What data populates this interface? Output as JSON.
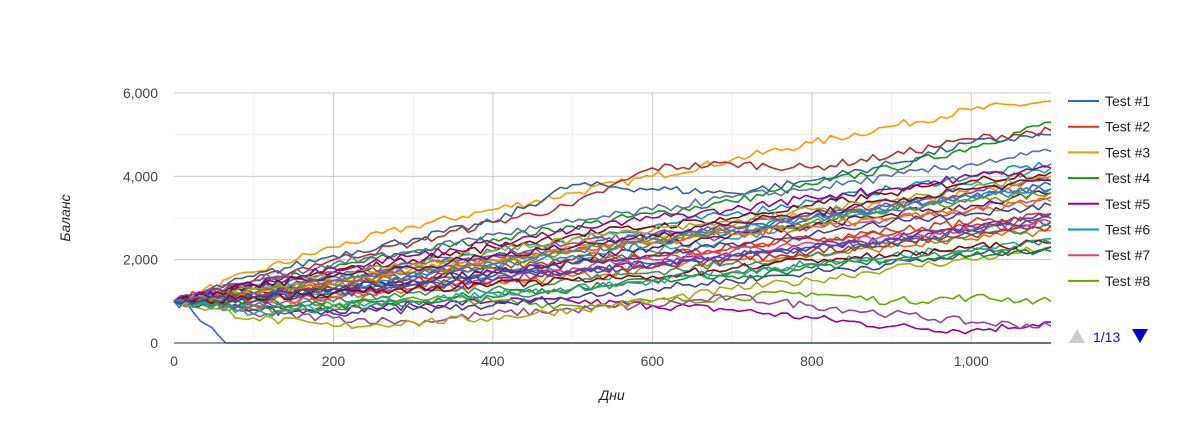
{
  "chart_data": {
    "type": "line",
    "title": "",
    "xlabel": "Дни",
    "ylabel": "Баланс",
    "xlim": [
      0,
      1100
    ],
    "ylim": [
      0,
      6000
    ],
    "x_ticks": [
      0,
      200,
      400,
      600,
      800,
      1000
    ],
    "x_tick_labels": [
      "0",
      "200",
      "400",
      "600",
      "800",
      "1,000"
    ],
    "y_ticks": [
      0,
      2000,
      4000,
      6000
    ],
    "y_tick_labels": [
      "0",
      "2,000",
      "4,000",
      "6,000"
    ],
    "grid": true,
    "legend_position": "right",
    "legend": {
      "page_label": "1/13",
      "entries": [
        {
          "name": "Test #1",
          "color": "#3366cc"
        },
        {
          "name": "Test #2",
          "color": "#dc3912"
        },
        {
          "name": "Test #3",
          "color": "#ff9900"
        },
        {
          "name": "Test #4",
          "color": "#109618"
        },
        {
          "name": "Test #5",
          "color": "#990099"
        },
        {
          "name": "Test #6",
          "color": "#0099c6"
        },
        {
          "name": "Test #7",
          "color": "#dd4477"
        },
        {
          "name": "Test #8",
          "color": "#66aa00"
        }
      ]
    },
    "palette": [
      "#3366cc",
      "#dc3912",
      "#ff9900",
      "#109618",
      "#990099",
      "#0099c6",
      "#dd4477",
      "#66aa00",
      "#b82e2e",
      "#316395",
      "#994499",
      "#22aa99",
      "#aaaa11",
      "#6633cc",
      "#e67300",
      "#8b0707",
      "#651067",
      "#329262",
      "#5574a6",
      "#3b3eac"
    ],
    "series": [
      {
        "name": "Test #1",
        "x": [
          0,
          20,
          40,
          55,
          65,
          1100
        ],
        "y": [
          1000,
          850,
          450,
          200,
          0,
          0
        ]
      },
      {
        "name": "Test #2",
        "x": [
          0,
          100,
          200,
          300,
          400,
          500,
          600,
          700,
          800,
          900,
          1000,
          1100
        ],
        "y": [
          1000,
          1100,
          1300,
          1500,
          1700,
          1900,
          2100,
          2300,
          2500,
          2700,
          2900,
          3100
        ]
      },
      {
        "name": "Test #3",
        "x": [
          0,
          100,
          200,
          300,
          400,
          500,
          600,
          700,
          800,
          900,
          1000,
          1100
        ],
        "y": [
          1000,
          1700,
          2300,
          2800,
          3200,
          3600,
          4000,
          4400,
          4800,
          5200,
          5600,
          5800
        ]
      },
      {
        "name": "Test #4",
        "x": [
          0,
          100,
          200,
          300,
          400,
          500,
          600,
          700,
          800,
          900,
          1000,
          1100
        ],
        "y": [
          1000,
          1400,
          1800,
          2200,
          2500,
          2800,
          3100,
          3400,
          3800,
          4200,
          4700,
          5300
        ]
      },
      {
        "name": "Test #5",
        "x": [
          0,
          100,
          200,
          300,
          400,
          500,
          600,
          700,
          800,
          900,
          1000,
          1100
        ],
        "y": [
          1000,
          900,
          800,
          900,
          1000,
          1000,
          900,
          800,
          600,
          400,
          300,
          500
        ]
      },
      {
        "name": "Test #6",
        "x": [
          0,
          100,
          200,
          300,
          400,
          500,
          600,
          700,
          800,
          900,
          1000,
          1100
        ],
        "y": [
          1000,
          1300,
          1600,
          1900,
          2200,
          2500,
          2800,
          3100,
          3400,
          3700,
          4000,
          4300
        ]
      },
      {
        "name": "Test #7",
        "x": [
          0,
          100,
          200,
          300,
          400,
          500,
          600,
          700,
          800,
          900,
          1000,
          1100
        ],
        "y": [
          1000,
          1200,
          1500,
          1700,
          2000,
          2200,
          2400,
          2600,
          2800,
          3000,
          3200,
          3500
        ]
      },
      {
        "name": "Test #8",
        "x": [
          0,
          100,
          200,
          300,
          400,
          500,
          600,
          700,
          800,
          900,
          1000,
          1100
        ],
        "y": [
          1000,
          800,
          900,
          1100,
          1000,
          900,
          1000,
          1100,
          1200,
          1000,
          1100,
          1000
        ]
      },
      {
        "x": [
          0,
          100,
          200,
          300,
          400,
          500,
          600,
          700,
          800,
          900,
          1000,
          1100
        ],
        "y": [
          1000,
          1500,
          2000,
          2400,
          2900,
          3300,
          4200,
          4300,
          4200,
          4500,
          4900,
          5100
        ]
      },
      {
        "x": [
          0,
          100,
          200,
          300,
          400,
          500,
          600,
          700,
          800,
          900,
          1000,
          1100
        ],
        "y": [
          1000,
          1600,
          2100,
          2500,
          2900,
          3800,
          3700,
          3600,
          3900,
          4300,
          4800,
          5000
        ]
      },
      {
        "x": [
          0,
          100,
          200,
          300,
          400,
          500,
          600,
          700,
          800,
          900,
          1000,
          1100
        ],
        "y": [
          1000,
          700,
          600,
          500,
          700,
          800,
          900,
          1100,
          900,
          700,
          500,
          400
        ]
      },
      {
        "x": [
          0,
          100,
          200,
          300,
          400,
          500,
          600,
          700,
          800,
          900,
          1000,
          1100
        ],
        "y": [
          1000,
          1100,
          1200,
          1400,
          1600,
          1900,
          2200,
          2500,
          2900,
          3300,
          3800,
          4200
        ]
      },
      {
        "x": [
          0,
          100,
          200,
          300,
          400,
          500,
          600,
          700,
          800,
          900,
          1000,
          1100
        ],
        "y": [
          1000,
          600,
          400,
          500,
          600,
          800,
          1000,
          1300,
          1500,
          1800,
          2000,
          2300
        ]
      },
      {
        "x": [
          0,
          100,
          200,
          300,
          400,
          500,
          600,
          700,
          800,
          900,
          1000,
          1100
        ],
        "y": [
          1000,
          1300,
          1500,
          1600,
          1800,
          1700,
          1900,
          2100,
          2300,
          2500,
          2700,
          2900
        ]
      },
      {
        "x": [
          0,
          100,
          200,
          300,
          400,
          500,
          600,
          700,
          800,
          900,
          1000,
          1100
        ],
        "y": [
          1000,
          1000,
          1100,
          1300,
          1400,
          1600,
          1800,
          2000,
          2100,
          2300,
          2500,
          2700
        ]
      },
      {
        "x": [
          0,
          100,
          200,
          300,
          400,
          500,
          600,
          700,
          800,
          900,
          1000,
          1100
        ],
        "y": [
          1000,
          1400,
          1700,
          2000,
          2300,
          2600,
          2800,
          3000,
          3300,
          3600,
          3900,
          4100
        ]
      },
      {
        "x": [
          0,
          100,
          200,
          300,
          400,
          500,
          600,
          700,
          800,
          900,
          1000,
          1100
        ],
        "y": [
          1000,
          1200,
          1300,
          1500,
          1700,
          2000,
          2300,
          2600,
          2800,
          3100,
          3300,
          3600
        ]
      },
      {
        "x": [
          0,
          100,
          200,
          300,
          400,
          500,
          600,
          700,
          800,
          900,
          1000,
          1100
        ],
        "y": [
          1000,
          900,
          1000,
          1200,
          1300,
          1500,
          1700,
          1900,
          2100,
          2400,
          2600,
          2800
        ]
      },
      {
        "x": [
          0,
          100,
          200,
          300,
          400,
          500,
          600,
          700,
          800,
          900,
          1000,
          1100
        ],
        "y": [
          1000,
          1500,
          1900,
          2200,
          2600,
          2900,
          3200,
          3500,
          3700,
          4000,
          4300,
          4600
        ]
      },
      {
        "x": [
          0,
          100,
          200,
          300,
          400,
          500,
          600,
          700,
          800,
          900,
          1000,
          1100
        ],
        "y": [
          1000,
          800,
          700,
          800,
          900,
          1100,
          1300,
          1500,
          1700,
          1900,
          2100,
          2300
        ]
      },
      {
        "x": [
          0,
          100,
          200,
          300,
          400,
          500,
          600,
          700,
          800,
          900,
          1000,
          1100
        ],
        "y": [
          1000,
          1300,
          1600,
          1800,
          2100,
          2300,
          2600,
          2800,
          3000,
          3300,
          3500,
          3800
        ]
      },
      {
        "x": [
          0,
          100,
          200,
          300,
          400,
          500,
          600,
          700,
          800,
          900,
          1000,
          1100
        ],
        "y": [
          1000,
          1100,
          1400,
          1600,
          1800,
          2000,
          2100,
          2300,
          2500,
          2600,
          2800,
          3000
        ]
      },
      {
        "x": [
          0,
          100,
          200,
          300,
          400,
          500,
          600,
          700,
          800,
          900,
          1000,
          1100
        ],
        "y": [
          1000,
          1200,
          1500,
          1800,
          2000,
          2300,
          2500,
          2800,
          3100,
          3400,
          3600,
          3900
        ]
      },
      {
        "x": [
          0,
          100,
          200,
          300,
          400,
          500,
          600,
          700,
          800,
          900,
          1000,
          1100
        ],
        "y": [
          1000,
          1000,
          900,
          1000,
          1200,
          1300,
          1500,
          1600,
          1800,
          2000,
          2100,
          2200
        ]
      },
      {
        "x": [
          0,
          100,
          200,
          300,
          400,
          500,
          600,
          700,
          800,
          900,
          1000,
          1100
        ],
        "y": [
          1000,
          1400,
          1800,
          2100,
          2400,
          2700,
          3000,
          3200,
          3500,
          3700,
          4000,
          4200
        ]
      },
      {
        "x": [
          0,
          100,
          200,
          300,
          400,
          500,
          600,
          700,
          800,
          900,
          1000,
          1100
        ],
        "y": [
          1000,
          1100,
          1300,
          1600,
          1900,
          2100,
          2400,
          2700,
          3000,
          3200,
          3500,
          3700
        ]
      },
      {
        "x": [
          0,
          100,
          200,
          300,
          400,
          500,
          600,
          700,
          800,
          900,
          1000,
          1100
        ],
        "y": [
          1000,
          900,
          1100,
          1300,
          1500,
          1800,
          2000,
          2200,
          2400,
          2500,
          2700,
          2900
        ]
      },
      {
        "x": [
          0,
          100,
          200,
          300,
          400,
          500,
          600,
          700,
          800,
          900,
          1000,
          1100
        ],
        "y": [
          1000,
          1300,
          1400,
          1700,
          1900,
          2200,
          2500,
          2700,
          2900,
          3200,
          3400,
          3600
        ]
      },
      {
        "x": [
          0,
          100,
          200,
          300,
          400,
          500,
          600,
          700,
          800,
          900,
          1000,
          1100
        ],
        "y": [
          1000,
          1200,
          1300,
          1400,
          1500,
          1700,
          1800,
          2000,
          2200,
          2400,
          2600,
          2800
        ]
      },
      {
        "x": [
          0,
          100,
          200,
          300,
          400,
          500,
          600,
          700,
          800,
          900,
          1000,
          1100
        ],
        "y": [
          1000,
          1100,
          1200,
          1400,
          1600,
          1700,
          1900,
          2100,
          2300,
          2400,
          2700,
          3000
        ]
      },
      {
        "x": [
          0,
          100,
          200,
          300,
          400,
          500,
          600,
          700,
          800,
          900,
          1000,
          1100
        ],
        "y": [
          1000,
          1500,
          1700,
          1900,
          2100,
          2400,
          2600,
          2800,
          3100,
          3300,
          3600,
          3900
        ]
      },
      {
        "x": [
          0,
          100,
          200,
          300,
          400,
          500,
          600,
          700,
          800,
          900,
          1000,
          1100
        ],
        "y": [
          1000,
          700,
          900,
          1000,
          1200,
          1300,
          1500,
          1700,
          1900,
          2100,
          2300,
          2500
        ]
      },
      {
        "x": [
          0,
          100,
          200,
          300,
          400,
          500,
          600,
          700,
          800,
          900,
          1000,
          1100
        ],
        "y": [
          1000,
          1300,
          1600,
          1900,
          2200,
          2500,
          2700,
          2900,
          3200,
          3400,
          3700,
          4000
        ]
      },
      {
        "x": [
          0,
          100,
          200,
          300,
          400,
          500,
          600,
          700,
          800,
          900,
          1000,
          1100
        ],
        "y": [
          1000,
          1000,
          1200,
          1300,
          1500,
          1700,
          1900,
          2100,
          2300,
          2500,
          2800,
          3100
        ]
      },
      {
        "x": [
          0,
          100,
          200,
          300,
          400,
          500,
          600,
          700,
          800,
          900,
          1000,
          1100
        ],
        "y": [
          1000,
          1200,
          1400,
          1700,
          2000,
          2200,
          2400,
          2600,
          2800,
          3000,
          3200,
          3400
        ]
      },
      {
        "x": [
          0,
          100,
          200,
          300,
          400,
          500,
          600,
          700,
          800,
          900,
          1000,
          1100
        ],
        "y": [
          1000,
          1100,
          1200,
          1300,
          1400,
          1500,
          1600,
          1800,
          2000,
          2100,
          2300,
          2400
        ]
      },
      {
        "x": [
          0,
          100,
          200,
          300,
          400,
          500,
          600,
          700,
          800,
          900,
          1000,
          1100
        ],
        "y": [
          1000,
          1400,
          1600,
          1800,
          2100,
          2300,
          2600,
          2900,
          3100,
          3400,
          3700,
          3900
        ]
      },
      {
        "x": [
          0,
          100,
          200,
          300,
          400,
          500,
          600,
          700,
          800,
          900,
          1000,
          1100
        ],
        "y": [
          1000,
          900,
          800,
          1000,
          1100,
          1300,
          1500,
          1700,
          1900,
          2000,
          2200,
          2400
        ]
      },
      {
        "x": [
          0,
          100,
          200,
          300,
          400,
          500,
          600,
          700,
          800,
          900,
          1000,
          1100
        ],
        "y": [
          1000,
          1200,
          1500,
          1700,
          1900,
          2200,
          2500,
          2700,
          3000,
          3200,
          3500,
          3700
        ]
      },
      {
        "x": [
          0,
          100,
          200,
          300,
          400,
          500,
          600,
          700,
          800,
          900,
          1000,
          1100
        ],
        "y": [
          1000,
          1100,
          1300,
          1500,
          1700,
          1900,
          2100,
          2400,
          2600,
          2900,
          3100,
          3300
        ]
      }
    ]
  }
}
